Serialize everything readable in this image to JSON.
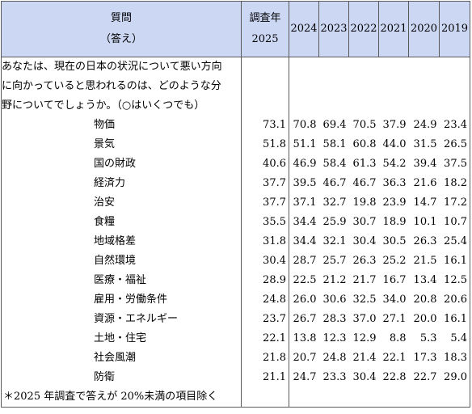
{
  "header": {
    "question_line1": "質問",
    "question_line2": "（答え）",
    "survey_label": "調査年",
    "survey_year": "2025",
    "years": [
      "2024",
      "2023",
      "2022",
      "2021",
      "2020",
      "2019"
    ]
  },
  "question_lines": [
    "あなたは、現在の日本の状況について悪い方向",
    "に向かっていると思われるのは、どのような分",
    "野についてでしょうか。（○はいくつでも）"
  ],
  "rows": [
    {
      "label": "物価",
      "v": [
        "73.1",
        "70.8",
        "69.4",
        "70.5",
        "37.9",
        "24.9",
        "23.4"
      ]
    },
    {
      "label": "景気",
      "v": [
        "51.8",
        "51.1",
        "58.1",
        "60.8",
        "44.0",
        "31.5",
        "26.5"
      ]
    },
    {
      "label": "国の財政",
      "v": [
        "40.6",
        "46.9",
        "58.4",
        "61.3",
        "54.2",
        "39.4",
        "37.5"
      ]
    },
    {
      "label": "経済力",
      "v": [
        "37.7",
        "39.5",
        "46.7",
        "46.7",
        "36.3",
        "21.6",
        "18.2"
      ]
    },
    {
      "label": "治安",
      "v": [
        "37.7",
        "37.1",
        "32.7",
        "19.8",
        "23.9",
        "14.7",
        "17.2"
      ]
    },
    {
      "label": "食糧",
      "v": [
        "35.5",
        "34.4",
        "25.9",
        "30.7",
        "18.9",
        "10.1",
        "10.7"
      ]
    },
    {
      "label": "地域格差",
      "v": [
        "31.8",
        "34.4",
        "32.1",
        "30.4",
        "30.5",
        "26.3",
        "25.4"
      ]
    },
    {
      "label": "自然環境",
      "v": [
        "30.4",
        "28.7",
        "25.7",
        "26.3",
        "25.2",
        "21.5",
        "16.1"
      ]
    },
    {
      "label": "医療・福祉",
      "v": [
        "28.9",
        "22.5",
        "21.2",
        "21.7",
        "16.7",
        "13.4",
        "12.5"
      ]
    },
    {
      "label": "雇用・労働条件",
      "v": [
        "24.8",
        "26.0",
        "30.6",
        "32.5",
        "34.0",
        "20.8",
        "20.6"
      ]
    },
    {
      "label": "資源・エネルギー",
      "v": [
        "23.7",
        "26.7",
        "28.3",
        "37.0",
        "27.1",
        "20.0",
        "16.1"
      ]
    },
    {
      "label": "土地・住宅",
      "v": [
        "22.1",
        "13.8",
        "12.3",
        "12.9",
        "8.8",
        "5.3",
        "5.4"
      ]
    },
    {
      "label": "社会風潮",
      "v": [
        "21.8",
        "20.7",
        "24.8",
        "21.4",
        "22.1",
        "17.3",
        "18.3"
      ]
    },
    {
      "label": "防衛",
      "v": [
        "21.1",
        "24.7",
        "23.3",
        "30.4",
        "22.8",
        "22.7",
        "29.0"
      ]
    }
  ],
  "footnote": "＊2025 年調査で答えが 20%未満の項目除く"
}
